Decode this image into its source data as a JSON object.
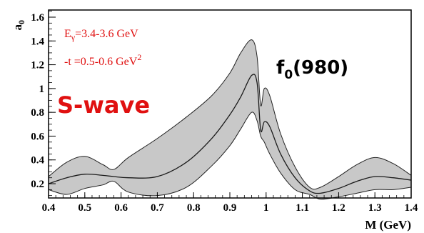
{
  "chart_data": {
    "type": "area",
    "xlabel": "M (GeV)",
    "ylabel": "a",
    "ylabel_sub": "0",
    "xlim": [
      0.4,
      1.4
    ],
    "ylim": [
      0.08,
      1.66
    ],
    "x_ticks": [
      "0.4",
      "0.5",
      "0.6",
      "0.7",
      "0.8",
      "0.9",
      "1",
      "1.1",
      "1.2",
      "1.3",
      "1.4"
    ],
    "y_ticks": [
      "0.2",
      "0.4",
      "0.6",
      "0.8",
      "1",
      "1.2",
      "1.4",
      "1.6"
    ],
    "grid": false,
    "colors": {
      "band": "#c8c8c8",
      "line": "#1a1a1a",
      "red": "#e01010"
    },
    "annotations": {
      "energy_prefix": "E",
      "energy_sub": "γ",
      "energy_rest": "=3.4-3.6 GeV",
      "t_text": "-t =0.5-0.6 GeV",
      "t_sup": "2",
      "wave": "S-wave",
      "resonance_main": "f",
      "resonance_sub": "0",
      "resonance_rest": "(980)"
    },
    "series": [
      {
        "role": "central",
        "x": [
          0.4,
          0.45,
          0.5,
          0.55,
          0.58,
          0.62,
          0.7,
          0.78,
          0.85,
          0.9,
          0.93,
          0.96,
          0.975,
          0.985,
          0.995,
          1.01,
          1.04,
          1.08,
          1.12,
          1.15,
          1.2,
          1.25,
          1.3,
          1.35,
          1.4
        ],
        "y": [
          0.2,
          0.25,
          0.28,
          0.27,
          0.26,
          0.25,
          0.26,
          0.38,
          0.58,
          0.78,
          0.93,
          1.11,
          1.05,
          0.65,
          0.72,
          0.68,
          0.45,
          0.25,
          0.14,
          0.12,
          0.16,
          0.22,
          0.26,
          0.25,
          0.23
        ]
      },
      {
        "role": "upper",
        "x": [
          0.4,
          0.45,
          0.5,
          0.55,
          0.58,
          0.62,
          0.7,
          0.78,
          0.85,
          0.9,
          0.93,
          0.96,
          0.975,
          0.985,
          0.995,
          1.01,
          1.04,
          1.08,
          1.12,
          1.15,
          1.2,
          1.25,
          1.3,
          1.35,
          1.4
        ],
        "y": [
          0.26,
          0.38,
          0.43,
          0.36,
          0.32,
          0.42,
          0.58,
          0.76,
          0.94,
          1.13,
          1.3,
          1.41,
          1.27,
          0.86,
          1.0,
          0.94,
          0.62,
          0.34,
          0.17,
          0.17,
          0.26,
          0.36,
          0.42,
          0.37,
          0.27
        ]
      },
      {
        "role": "lower",
        "x": [
          0.4,
          0.45,
          0.5,
          0.55,
          0.58,
          0.62,
          0.7,
          0.78,
          0.85,
          0.9,
          0.93,
          0.96,
          0.975,
          0.985,
          0.995,
          1.01,
          1.04,
          1.08,
          1.12,
          1.15,
          1.2,
          1.25,
          1.3,
          1.35,
          1.4
        ],
        "y": [
          0.15,
          0.11,
          0.16,
          0.19,
          0.22,
          0.13,
          0.1,
          0.17,
          0.35,
          0.52,
          0.66,
          0.8,
          0.73,
          0.6,
          0.55,
          0.45,
          0.29,
          0.15,
          0.11,
          0.07,
          0.09,
          0.12,
          0.15,
          0.15,
          0.17
        ]
      }
    ]
  }
}
